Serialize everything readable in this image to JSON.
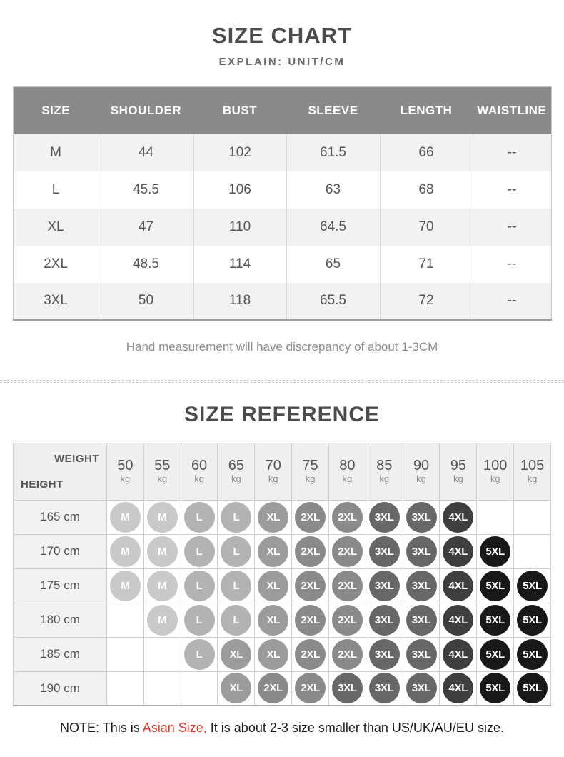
{
  "colors": {
    "table_header_bg": "#8a8a8a",
    "row_alt_bg": "#f2f2f2",
    "accent_red": "#e8362d"
  },
  "size_chart": {
    "title": "SIZE CHART",
    "subtitle": "EXPLAIN: UNIT/CM",
    "columns": [
      "SIZE",
      "SHOULDER",
      "BUST",
      "SLEEVE",
      "LENGTH",
      "WAISTLINE"
    ],
    "rows": [
      [
        "M",
        "44",
        "102",
        "61.5",
        "66",
        "--"
      ],
      [
        "L",
        "45.5",
        "106",
        "63",
        "68",
        "--"
      ],
      [
        "XL",
        "47",
        "110",
        "64.5",
        "70",
        "--"
      ],
      [
        "2XL",
        "48.5",
        "114",
        "65",
        "71",
        "--"
      ],
      [
        "3XL",
        "50",
        "118",
        "65.5",
        "72",
        "--"
      ]
    ],
    "note": "Hand measurement will have discrepancy of about 1-3CM"
  },
  "size_reference": {
    "title": "SIZE REFERENCE",
    "corner_top": "WEIGHT",
    "corner_bottom": "HEIGHT",
    "weight_unit": "kg",
    "weights": [
      "50",
      "55",
      "60",
      "65",
      "70",
      "75",
      "80",
      "85",
      "90",
      "95",
      "100",
      "105"
    ],
    "rows": [
      {
        "height": "165 cm",
        "sizes": [
          "M",
          "M",
          "L",
          "L",
          "XL",
          "2XL",
          "2XL",
          "3XL",
          "3XL",
          "4XL",
          "",
          ""
        ]
      },
      {
        "height": "170 cm",
        "sizes": [
          "M",
          "M",
          "L",
          "L",
          "XL",
          "2XL",
          "2XL",
          "3XL",
          "3XL",
          "4XL",
          "5XL",
          ""
        ]
      },
      {
        "height": "175 cm",
        "sizes": [
          "M",
          "M",
          "L",
          "L",
          "XL",
          "2XL",
          "2XL",
          "3XL",
          "3XL",
          "4XL",
          "5XL",
          "5XL"
        ]
      },
      {
        "height": "180 cm",
        "sizes": [
          "",
          "M",
          "L",
          "L",
          "XL",
          "2XL",
          "2XL",
          "3XL",
          "3XL",
          "4XL",
          "5XL",
          "5XL"
        ]
      },
      {
        "height": "185 cm",
        "sizes": [
          "",
          "",
          "L",
          "XL",
          "XL",
          "2XL",
          "2XL",
          "3XL",
          "3XL",
          "4XL",
          "5XL",
          "5XL"
        ]
      },
      {
        "height": "190 cm",
        "sizes": [
          "",
          "",
          "",
          "XL",
          "2XL",
          "2XL",
          "3XL",
          "3XL",
          "3XL",
          "4XL",
          "5XL",
          "5XL"
        ]
      }
    ],
    "size_colors": {
      "M": "#c9c9c9",
      "L": "#b3b3b3",
      "XL": "#9c9c9c",
      "2XL": "#8a8a8a",
      "3XL": "#676767",
      "4XL": "#3f3f3f",
      "5XL": "#181818"
    }
  },
  "footer_note": {
    "prefix": "NOTE: This is ",
    "highlight": "Asian Size,",
    "suffix": " It is about 2-3 size smaller than US/UK/AU/EU size."
  }
}
